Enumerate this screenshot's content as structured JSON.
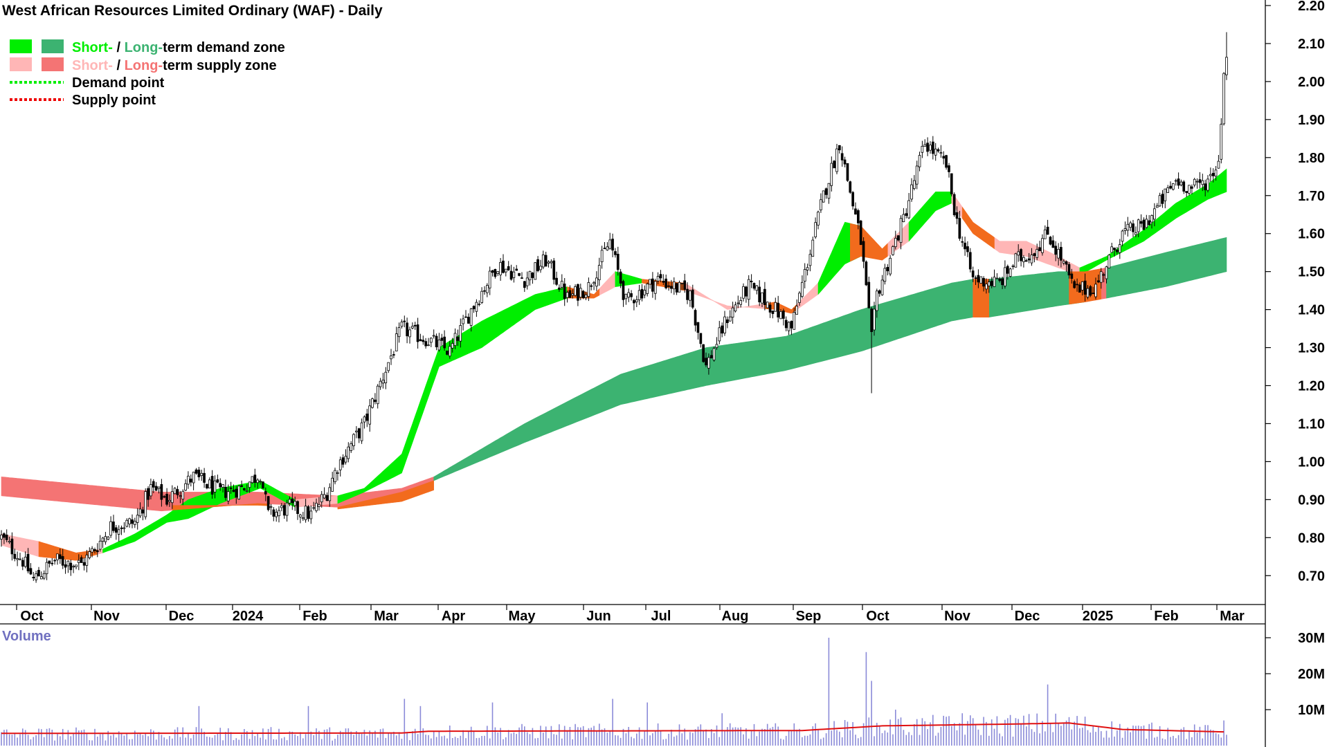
{
  "chart_data": {
    "type": "candlestick",
    "title": "West African Resources Limited Ordinary (WAF) - Daily",
    "legend": {
      "placement": "top-left",
      "items": [
        {
          "kind": "zone-pair",
          "short": "Short-",
          "sep": " / ",
          "long": "Long-",
          "rest": "term demand zone",
          "short_color": "#00ee00",
          "long_color": "#3cb371"
        },
        {
          "kind": "zone-pair",
          "short": "Short-",
          "sep": " / ",
          "long": "Long-",
          "rest": "term supply zone",
          "short_color": "#ffb6b6",
          "long_color": "#f47474"
        },
        {
          "kind": "line",
          "label": "Demand point",
          "color": "#00ee00"
        },
        {
          "kind": "line",
          "label": "Supply point",
          "color": "#ee0000"
        }
      ]
    },
    "y_axis": {
      "min": 0.62,
      "max": 2.21,
      "ticks": [
        "0.70",
        "0.80",
        "0.90",
        "1.00",
        "1.10",
        "1.20",
        "1.30",
        "1.40",
        "1.50",
        "1.60",
        "1.70",
        "1.80",
        "1.90",
        "2.00",
        "2.10",
        "2.20"
      ]
    },
    "x_axis": {
      "labels": [
        "Oct",
        "Nov",
        "Dec",
        "2024",
        "Feb",
        "Mar",
        "Apr",
        "May",
        "Jun",
        "Jul",
        "Aug",
        "Sep",
        "Oct",
        "Nov",
        "Dec",
        "2025",
        "Feb",
        "Mar"
      ]
    },
    "price_knots": [
      [
        0,
        0.8
      ],
      [
        8,
        0.74
      ],
      [
        12,
        0.69
      ],
      [
        20,
        0.74
      ],
      [
        30,
        0.73
      ],
      [
        36,
        0.78
      ],
      [
        41,
        0.83
      ],
      [
        50,
        0.84
      ],
      [
        56,
        0.93
      ],
      [
        62,
        0.9
      ],
      [
        72,
        0.96
      ],
      [
        82,
        0.92
      ],
      [
        90,
        0.93
      ],
      [
        97,
        0.97
      ],
      [
        100,
        0.86
      ],
      [
        108,
        0.88
      ],
      [
        116,
        0.86
      ],
      [
        122,
        0.92
      ],
      [
        126,
        0.99
      ],
      [
        136,
        1.1
      ],
      [
        150,
        1.35
      ],
      [
        160,
        1.32
      ],
      [
        168,
        1.29
      ],
      [
        176,
        1.4
      ],
      [
        186,
        1.52
      ],
      [
        196,
        1.48
      ],
      [
        204,
        1.53
      ],
      [
        212,
        1.43
      ],
      [
        220,
        1.46
      ],
      [
        228,
        1.58
      ],
      [
        234,
        1.42
      ],
      [
        246,
        1.48
      ],
      [
        258,
        1.44
      ],
      [
        264,
        1.25
      ],
      [
        272,
        1.38
      ],
      [
        280,
        1.46
      ],
      [
        290,
        1.4
      ],
      [
        296,
        1.35
      ],
      [
        308,
        1.7
      ],
      [
        314,
        1.84
      ],
      [
        322,
        1.58
      ],
      [
        326,
        1.32
      ],
      [
        328,
        1.44
      ],
      [
        338,
        1.64
      ],
      [
        346,
        1.84
      ],
      [
        354,
        1.78
      ],
      [
        358,
        1.63
      ],
      [
        364,
        1.48
      ],
      [
        374,
        1.47
      ],
      [
        380,
        1.53
      ],
      [
        386,
        1.55
      ],
      [
        392,
        1.6
      ],
      [
        398,
        1.52
      ],
      [
        402,
        1.45
      ],
      [
        410,
        1.46
      ],
      [
        414,
        1.52
      ],
      [
        420,
        1.6
      ],
      [
        428,
        1.62
      ],
      [
        436,
        1.7
      ],
      [
        440,
        1.74
      ],
      [
        446,
        1.72
      ],
      [
        452,
        1.74
      ],
      [
        456,
        1.79
      ],
      [
        458,
        2.02
      ],
      [
        459,
        2.08
      ]
    ],
    "zones": {
      "short_term": [
        [
          0,
          0.81,
          0.78,
          "supply"
        ],
        [
          14,
          0.79,
          0.75,
          "supply"
        ],
        [
          28,
          0.76,
          0.74,
          "supply"
        ],
        [
          38,
          0.77,
          0.76,
          "demand"
        ],
        [
          50,
          0.81,
          0.79,
          "demand"
        ],
        [
          62,
          0.86,
          0.84,
          "demand"
        ],
        [
          70,
          0.9,
          0.85,
          "demand"
        ],
        [
          82,
          0.93,
          0.89,
          "demand"
        ],
        [
          97,
          0.95,
          0.93,
          "demand"
        ],
        [
          110,
          0.9,
          0.88,
          "supply"
        ],
        [
          126,
          0.91,
          0.89,
          "demand"
        ],
        [
          136,
          0.93,
          0.92,
          "demand"
        ],
        [
          150,
          1.02,
          0.97,
          "demand"
        ],
        [
          164,
          1.3,
          1.25,
          "demand"
        ],
        [
          180,
          1.37,
          1.3,
          "demand"
        ],
        [
          200,
          1.44,
          1.4,
          "demand"
        ],
        [
          212,
          1.46,
          1.43,
          "supply"
        ],
        [
          222,
          1.44,
          1.43,
          "supply"
        ],
        [
          230,
          1.5,
          1.46,
          "demand"
        ],
        [
          240,
          1.48,
          1.47,
          "supply"
        ],
        [
          256,
          1.47,
          1.45,
          "supply"
        ],
        [
          272,
          1.4,
          1.41,
          "supply"
        ],
        [
          290,
          1.42,
          1.4,
          "supply"
        ],
        [
          296,
          1.4,
          1.39,
          "supply"
        ],
        [
          306,
          1.47,
          1.44,
          "demand"
        ],
        [
          316,
          1.63,
          1.52,
          "demand"
        ],
        [
          322,
          1.62,
          1.54,
          "supply"
        ],
        [
          330,
          1.56,
          1.53,
          "supply"
        ],
        [
          340,
          1.63,
          1.58,
          "demand"
        ],
        [
          350,
          1.71,
          1.66,
          "demand"
        ],
        [
          356,
          1.71,
          1.68,
          "supply"
        ],
        [
          364,
          1.63,
          1.6,
          "supply"
        ],
        [
          374,
          1.58,
          1.55,
          "supply"
        ],
        [
          384,
          1.58,
          1.54,
          "supply"
        ],
        [
          396,
          1.54,
          1.51,
          "supply"
        ],
        [
          404,
          1.51,
          1.49,
          "demand"
        ],
        [
          414,
          1.54,
          1.53,
          "demand"
        ],
        [
          428,
          1.61,
          1.58,
          "demand"
        ],
        [
          440,
          1.68,
          1.64,
          "demand"
        ],
        [
          452,
          1.73,
          1.69,
          "demand"
        ],
        [
          459,
          1.77,
          1.71,
          "demand"
        ]
      ],
      "long_term": [
        [
          0,
          0.96,
          0.91,
          "supply"
        ],
        [
          60,
          0.92,
          0.87,
          "supply"
        ],
        [
          96,
          0.92,
          0.89,
          "supply"
        ],
        [
          126,
          0.91,
          0.88,
          "supply"
        ],
        [
          150,
          0.93,
          0.92,
          "supply"
        ],
        [
          162,
          0.96,
          0.95,
          "demand"
        ],
        [
          196,
          1.1,
          1.05,
          "demand"
        ],
        [
          232,
          1.23,
          1.15,
          "demand"
        ],
        [
          264,
          1.3,
          1.2,
          "demand"
        ],
        [
          294,
          1.33,
          1.24,
          "demand"
        ],
        [
          322,
          1.4,
          1.29,
          "demand"
        ],
        [
          356,
          1.47,
          1.37,
          "demand"
        ],
        [
          364,
          1.48,
          1.38,
          "supply"
        ],
        [
          370,
          1.48,
          1.38,
          "demand"
        ],
        [
          396,
          1.5,
          1.41,
          "demand"
        ],
        [
          406,
          1.5,
          1.42,
          "supply"
        ],
        [
          414,
          1.51,
          1.43,
          "demand"
        ],
        [
          436,
          1.55,
          1.46,
          "demand"
        ],
        [
          459,
          1.59,
          1.5,
          "demand"
        ]
      ]
    },
    "volume": {
      "label": "Volume",
      "ticks": [
        {
          "v": 10,
          "label": "10M"
        },
        {
          "v": 20,
          "label": "20M"
        },
        {
          "v": 30,
          "label": "30M"
        }
      ],
      "max": 31,
      "average": [
        [
          0,
          3.4
        ],
        [
          150,
          3.5
        ],
        [
          160,
          4.0
        ],
        [
          300,
          4.2
        ],
        [
          330,
          5.5
        ],
        [
          380,
          6.0
        ],
        [
          400,
          6.3
        ],
        [
          420,
          4.5
        ],
        [
          459,
          3.8
        ]
      ],
      "spikes": [
        [
          74,
          11
        ],
        [
          115,
          11
        ],
        [
          151,
          13
        ],
        [
          157,
          11
        ],
        [
          184,
          12
        ],
        [
          229,
          13
        ],
        [
          242,
          12
        ],
        [
          270,
          9
        ],
        [
          310,
          30
        ],
        [
          324,
          26
        ],
        [
          326,
          18
        ],
        [
          335,
          10
        ],
        [
          360,
          9
        ],
        [
          392,
          17
        ],
        [
          430,
          6
        ],
        [
          458,
          7
        ]
      ]
    }
  }
}
